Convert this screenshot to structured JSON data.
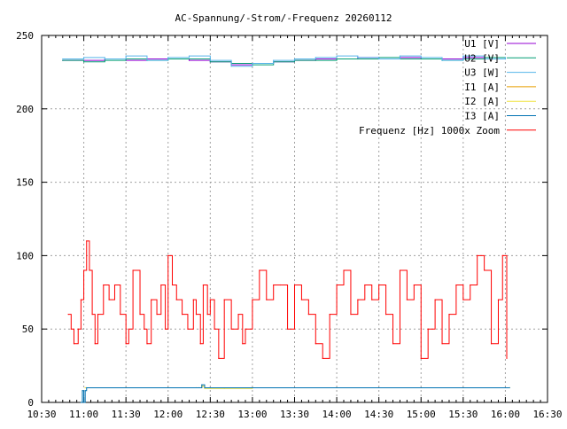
{
  "chart_data": {
    "type": "line",
    "title": "AC-Spannung/-Strom/-Frequenz 20260112",
    "xlabel": "",
    "ylabel": "",
    "xlim": [
      "10:30",
      "16:30"
    ],
    "ylim": [
      0,
      250
    ],
    "x_ticks": [
      "10:30",
      "11:00",
      "11:30",
      "12:00",
      "12:30",
      "13:00",
      "13:30",
      "14:00",
      "14:30",
      "15:00",
      "15:30",
      "16:00",
      "16:30"
    ],
    "y_ticks": [
      0,
      50,
      100,
      150,
      200,
      250
    ],
    "grid": true,
    "legend_position": "top-right",
    "series": [
      {
        "name": "U1 [V]",
        "color": "#9400d3",
        "x": [
          "10:45",
          "11:00",
          "11:15",
          "11:30",
          "11:45",
          "12:00",
          "12:15",
          "12:30",
          "12:45",
          "13:00",
          "13:15",
          "13:30",
          "13:45",
          "14:00",
          "14:15",
          "14:30",
          "14:45",
          "15:00",
          "15:15",
          "15:30",
          "15:45",
          "16:00"
        ],
        "y": [
          233,
          233,
          234,
          233,
          234,
          234,
          233,
          232,
          230,
          231,
          232,
          233,
          234,
          234,
          235,
          234,
          235,
          234,
          234,
          235,
          234,
          234
        ]
      },
      {
        "name": "U2 [V]",
        "color": "#009e73",
        "x": [
          "10:45",
          "11:00",
          "11:15",
          "11:30",
          "11:45",
          "12:00",
          "12:15",
          "12:30",
          "12:45",
          "13:00",
          "13:15",
          "13:30",
          "13:45",
          "14:00",
          "14:15",
          "14:30",
          "14:45",
          "15:00",
          "15:15",
          "15:30",
          "15:45",
          "16:00"
        ],
        "y": [
          233,
          232,
          233,
          234,
          233,
          234,
          234,
          232,
          231,
          230,
          232,
          233,
          233,
          234,
          234,
          235,
          234,
          234,
          233,
          234,
          235,
          234
        ]
      },
      {
        "name": "U3 [W]",
        "color": "#56b4e9",
        "x": [
          "10:45",
          "11:00",
          "11:15",
          "11:30",
          "11:45",
          "12:00",
          "12:15",
          "12:30",
          "12:45",
          "13:00",
          "13:15",
          "13:30",
          "13:45",
          "14:00",
          "14:15",
          "14:30",
          "14:45",
          "15:00",
          "15:15",
          "15:30",
          "15:45",
          "16:00"
        ],
        "y": [
          234,
          235,
          234,
          236,
          233,
          235,
          236,
          233,
          229,
          231,
          233,
          234,
          235,
          236,
          235,
          234,
          236,
          235,
          233,
          236,
          234,
          235
        ]
      },
      {
        "name": "I1 [A]",
        "color": "#e69f00",
        "x": [
          "11:01",
          "11:30",
          "12:00",
          "12:20",
          "12:24",
          "12:26",
          "13:00",
          "14:00",
          "15:00",
          "16:03"
        ],
        "y": [
          10,
          10,
          10,
          10,
          11,
          10,
          10,
          10,
          10,
          10
        ]
      },
      {
        "name": "I2 [A]",
        "color": "#f0e442",
        "x": [
          "11:01",
          "11:30",
          "12:00",
          "12:20",
          "12:24",
          "12:26",
          "12:40",
          "13:00",
          "14:00",
          "15:00",
          "16:03"
        ],
        "y": [
          10,
          10,
          10,
          10,
          11,
          9.5,
          9.5,
          10,
          10,
          10,
          10
        ]
      },
      {
        "name": "I3 [A]",
        "color": "#0072b2",
        "x": [
          "10:58",
          "10:59",
          "11:00",
          "11:01",
          "11:02",
          "11:30",
          "12:00",
          "12:22",
          "12:24",
          "12:26",
          "13:00",
          "14:00",
          "15:00",
          "16:03"
        ],
        "y": [
          0,
          8,
          0,
          8,
          10,
          10,
          10,
          10,
          12,
          10,
          10,
          10,
          10,
          10
        ]
      },
      {
        "name": "Frequenz [Hz] 1000x Zoom",
        "color": "#ff0000",
        "x": [
          "10:49",
          "10:51",
          "10:53",
          "10:56",
          "10:58",
          "11:00",
          "11:02",
          "11:04",
          "11:06",
          "11:08",
          "11:10",
          "11:14",
          "11:18",
          "11:22",
          "11:26",
          "11:30",
          "11:32",
          "11:35",
          "11:40",
          "11:43",
          "11:45",
          "11:48",
          "11:52",
          "11:55",
          "11:58",
          "12:00",
          "12:03",
          "12:06",
          "12:10",
          "12:14",
          "12:18",
          "12:20",
          "12:23",
          "12:25",
          "12:28",
          "12:30",
          "12:33",
          "12:36",
          "12:40",
          "12:45",
          "12:50",
          "12:53",
          "12:55",
          "13:00",
          "13:05",
          "13:10",
          "13:15",
          "13:20",
          "13:25",
          "13:30",
          "13:35",
          "13:40",
          "13:45",
          "13:50",
          "13:55",
          "14:00",
          "14:05",
          "14:10",
          "14:15",
          "14:20",
          "14:25",
          "14:30",
          "14:35",
          "14:40",
          "14:45",
          "14:50",
          "14:55",
          "15:00",
          "15:05",
          "15:10",
          "15:15",
          "15:20",
          "15:25",
          "15:30",
          "15:35",
          "15:40",
          "15:45",
          "15:50",
          "15:55",
          "15:58",
          "16:01"
        ],
        "y": [
          60,
          50,
          40,
          50,
          70,
          90,
          110,
          90,
          60,
          40,
          60,
          80,
          70,
          80,
          60,
          40,
          50,
          90,
          60,
          50,
          40,
          70,
          60,
          80,
          50,
          100,
          80,
          70,
          60,
          50,
          70,
          60,
          40,
          80,
          60,
          70,
          50,
          30,
          70,
          50,
          60,
          40,
          50,
          70,
          90,
          70,
          80,
          80,
          50,
          80,
          70,
          60,
          40,
          30,
          60,
          80,
          90,
          60,
          70,
          80,
          70,
          80,
          60,
          40,
          90,
          70,
          80,
          30,
          50,
          70,
          40,
          60,
          80,
          70,
          80,
          100,
          90,
          40,
          70,
          100,
          30
        ]
      }
    ]
  }
}
